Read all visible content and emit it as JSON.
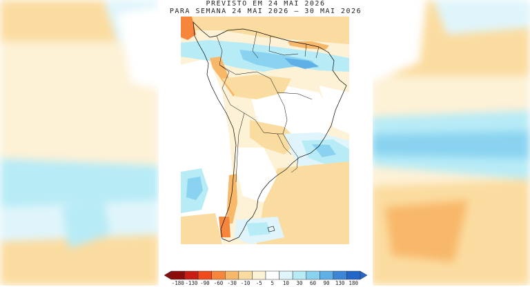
{
  "header": {
    "line1": "PREVISTO EM 24 MAI 2026",
    "line2": "PARA SEMANA 24 MAI 2026 – 30 MAI 2026"
  },
  "legend": {
    "labels": [
      "-180",
      "-130",
      "-90",
      "-60",
      "-30",
      "-10",
      "-5",
      "5",
      "10",
      "30",
      "60",
      "90",
      "130",
      "180"
    ],
    "colors": [
      "#8c0c0c",
      "#c81e14",
      "#f04a1e",
      "#f7863d",
      "#f8b86a",
      "#fbdca0",
      "#fdf1d6",
      "#ffffff",
      "#dff5fb",
      "#b7ebf6",
      "#89d3f0",
      "#5fb0e6",
      "#3d86d6",
      "#2466c8"
    ]
  },
  "colors": {
    "land_default": "#fdf1d6",
    "dry_light": "#fbdca0",
    "dry_medium": "#f8b86a",
    "dry_strong": "#f7863d",
    "wet_light": "#dff5fb",
    "wet_medium": "#b7ebf6",
    "wet_strong": "#89d3f0",
    "wet_heavy": "#5fb0e6",
    "border": "#000000"
  }
}
